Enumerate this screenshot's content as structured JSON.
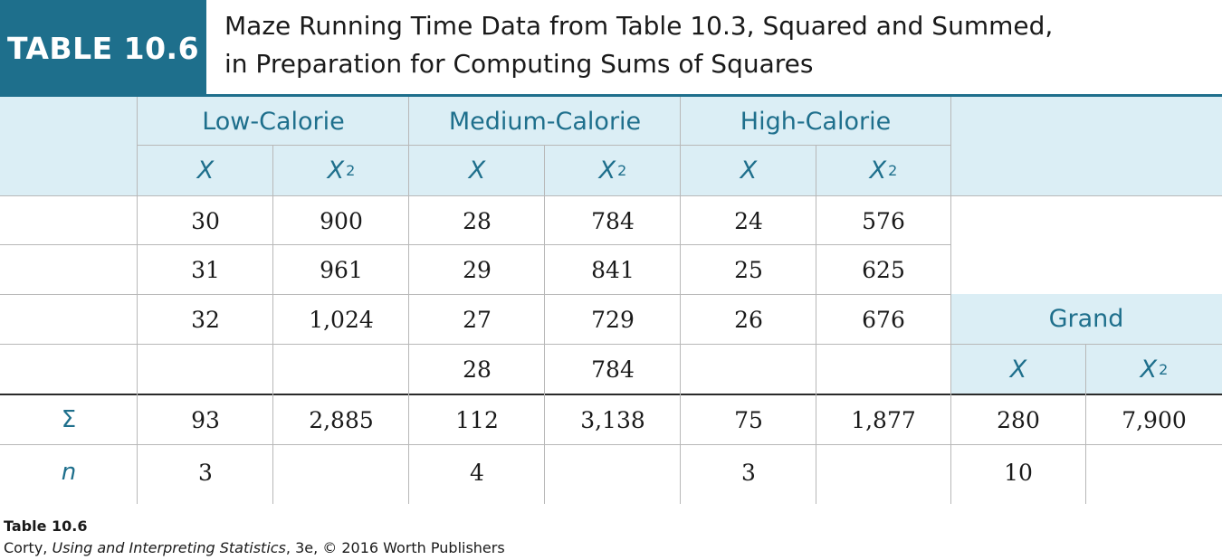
{
  "header": {
    "badge": "TABLE 10.6",
    "title_line1": "Maze Running Time Data from Table 10.3, Squared and Summed,",
    "title_line2": "in Preparation for Computing Sums of Squares"
  },
  "table": {
    "groups": [
      "Low-Calorie",
      "Medium-Calorie",
      "High-Calorie"
    ],
    "grand_label": "Grand",
    "x_label": "X",
    "x2_label": "X",
    "x2_sup": "2",
    "rows": [
      [
        "30",
        "900",
        "28",
        "784",
        "24",
        "576"
      ],
      [
        "31",
        "961",
        "29",
        "841",
        "25",
        "625"
      ],
      [
        "32",
        "1,024",
        "27",
        "729",
        "26",
        "676"
      ],
      [
        "",
        "",
        "28",
        "784",
        "",
        ""
      ]
    ],
    "sum_label": "Σ",
    "sum_row": [
      "93",
      "2,885",
      "112",
      "3,138",
      "75",
      "1,877",
      "280",
      "7,900"
    ],
    "n_label": "n",
    "n_row": [
      "3",
      "",
      "4",
      "",
      "3",
      "",
      "10",
      ""
    ]
  },
  "caption": {
    "line1": "Table 10.6",
    "author": "Corty, ",
    "book": "Using and Interpreting Statistics",
    "rest": ", 3e, © 2016 Worth Publishers"
  },
  "colors": {
    "accent": "#1e6f8c",
    "band": "#dbeef5"
  }
}
